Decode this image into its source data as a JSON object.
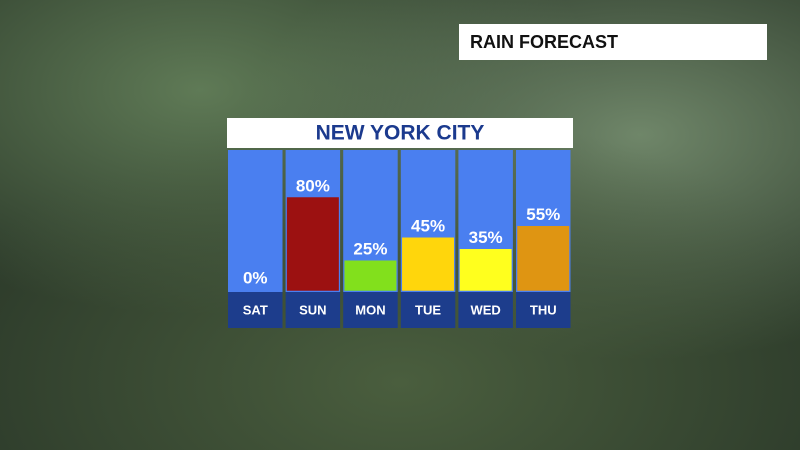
{
  "chart_data": {
    "type": "bar",
    "title": "NEW YORK CITY",
    "subtitle": "RAIN FORECAST",
    "categories": [
      "SAT",
      "SUN",
      "MON",
      "TUE",
      "WED",
      "THU"
    ],
    "values": [
      0,
      80,
      25,
      45,
      35,
      55
    ],
    "value_labels": [
      "0%",
      "80%",
      "25%",
      "45%",
      "35%",
      "55%"
    ],
    "colors": [
      "#ffffff",
      "#9c1111",
      "#82e01c",
      "#ffd60c",
      "#ffff1e",
      "#df9512"
    ]
  }
}
